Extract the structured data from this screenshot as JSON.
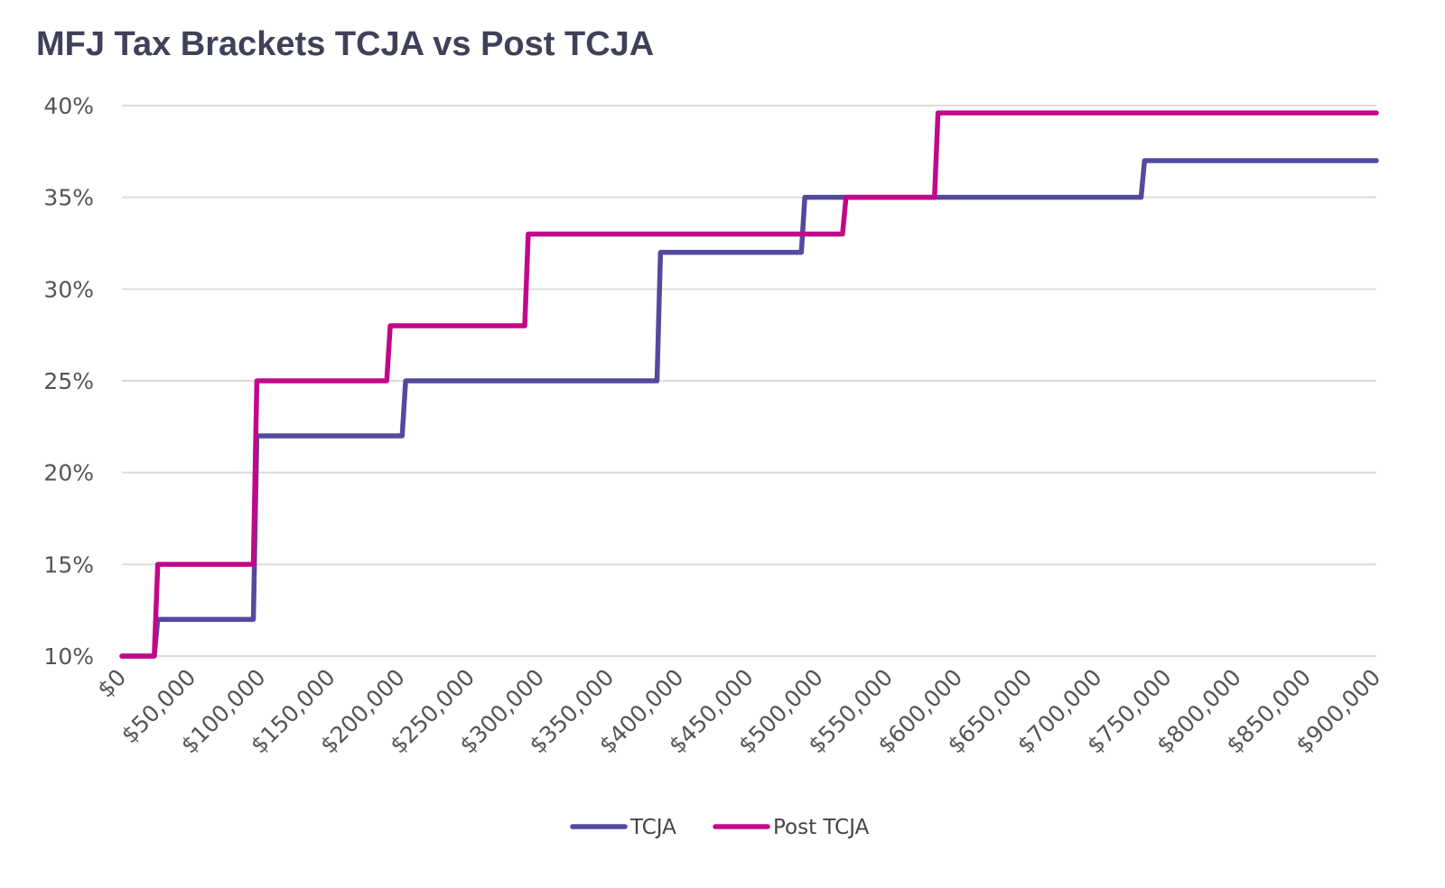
{
  "chart_data": {
    "type": "line",
    "title": "MFJ Tax Brackets TCJA vs Post TCJA",
    "xlabel": "",
    "ylabel": "",
    "xlim": [
      0,
      900000
    ],
    "ylim": [
      10,
      40
    ],
    "grid": true,
    "legend_position": "bottom",
    "x_ticks": [
      "$0",
      "$50,000",
      "$100,000",
      "$150,000",
      "$200,000",
      "$250,000",
      "$300,000",
      "$350,000",
      "$400,000",
      "$450,000",
      "$500,000",
      "$550,000",
      "$600,000",
      "$650,000",
      "$700,000",
      "$750,000",
      "$800,000",
      "$850,000",
      "$900,000"
    ],
    "y_ticks": [
      "10%",
      "15%",
      "20%",
      "25%",
      "30%",
      "35%",
      "40%"
    ],
    "series": [
      {
        "name": "TCJA",
        "color": "#524a9e",
        "steps": [
          {
            "from": 0,
            "rate": 10
          },
          {
            "from": 23200,
            "rate": 12
          },
          {
            "from": 94300,
            "rate": 22
          },
          {
            "from": 201050,
            "rate": 25
          },
          {
            "from": 383900,
            "rate": 32
          },
          {
            "from": 487450,
            "rate": 35
          },
          {
            "from": 731200,
            "rate": 37
          }
        ]
      },
      {
        "name": "Post TCJA",
        "color": "#c2078a",
        "steps": [
          {
            "from": 0,
            "rate": 10
          },
          {
            "from": 23200,
            "rate": 15
          },
          {
            "from": 94300,
            "rate": 25
          },
          {
            "from": 190000,
            "rate": 28
          },
          {
            "from": 289000,
            "rate": 33
          },
          {
            "from": 517000,
            "rate": 35
          },
          {
            "from": 583000,
            "rate": 39.6
          }
        ]
      }
    ]
  }
}
